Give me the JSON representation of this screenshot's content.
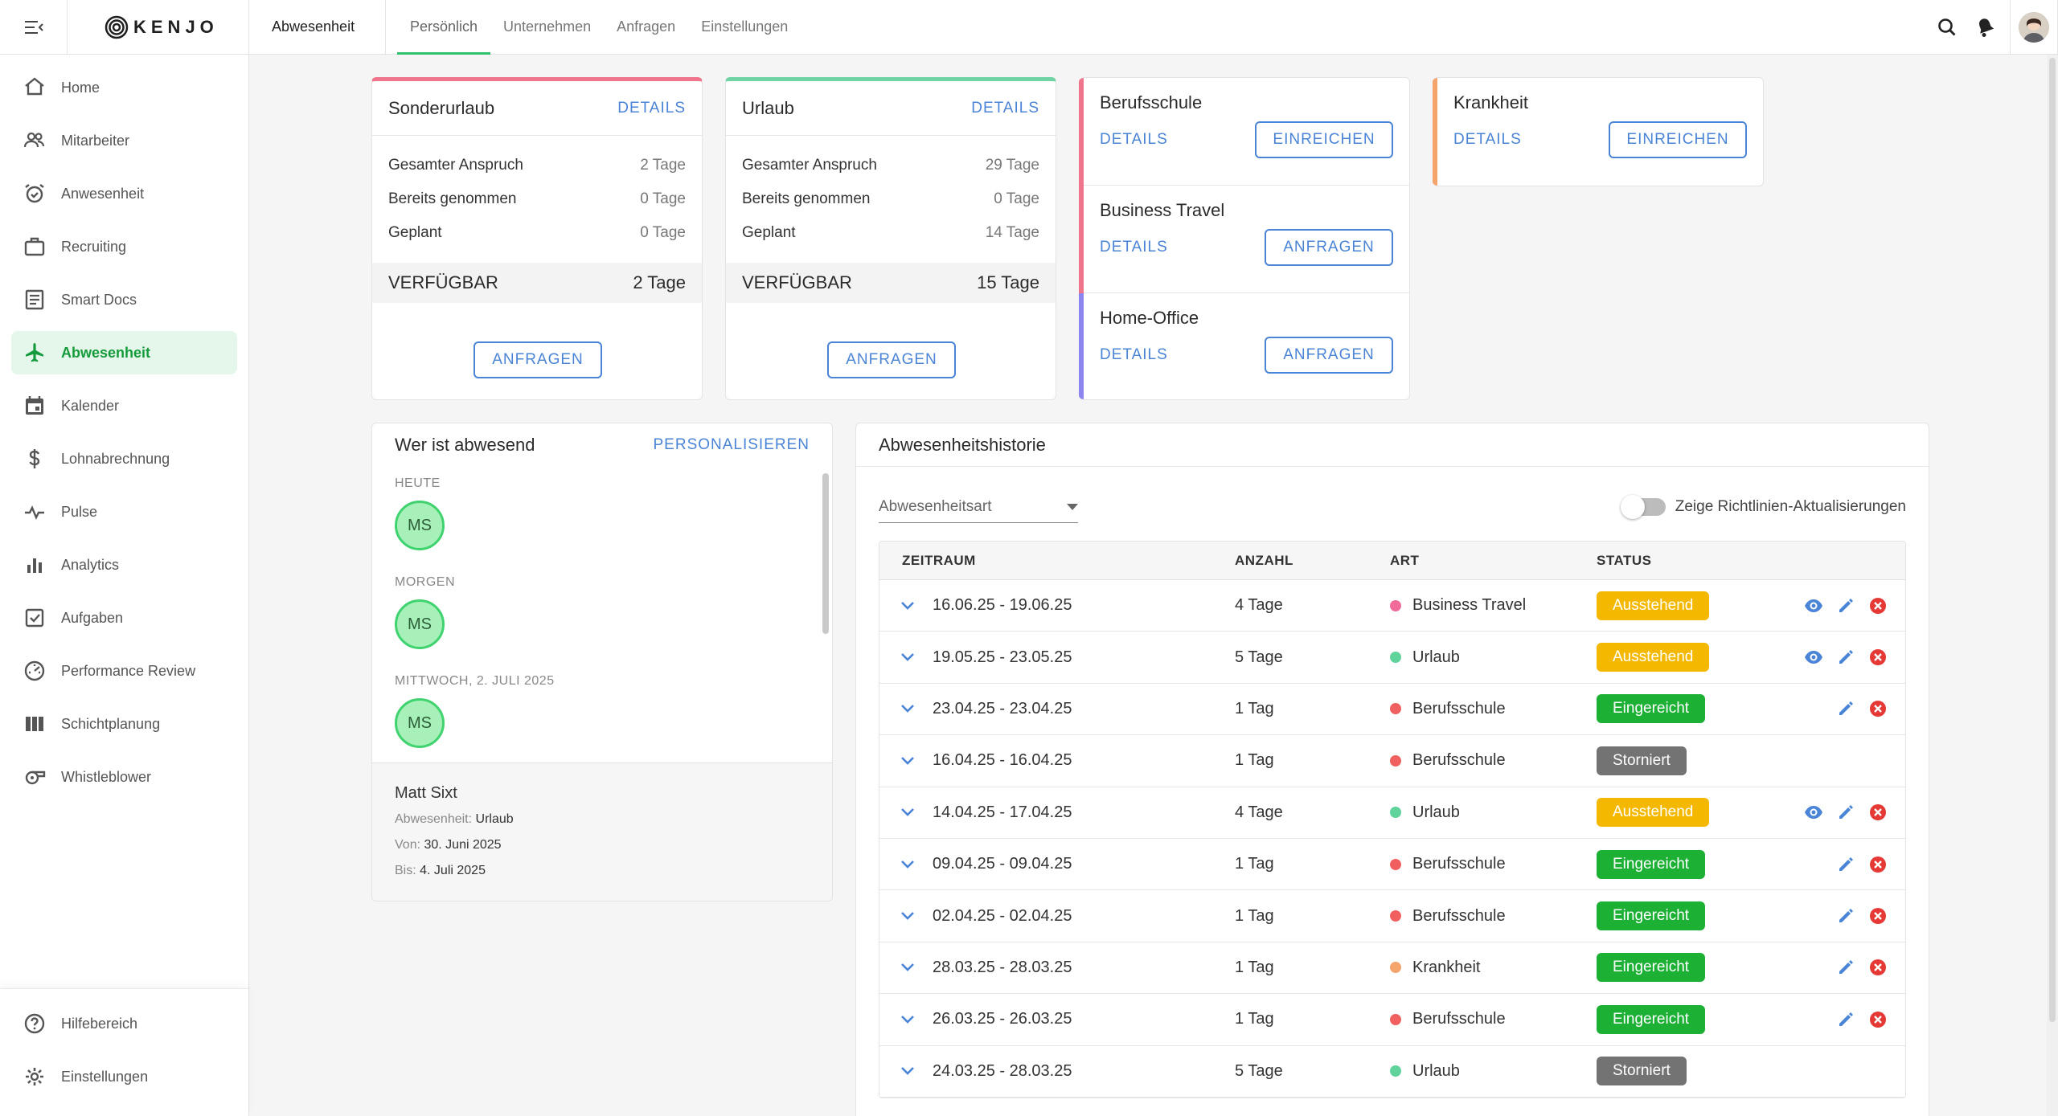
{
  "brand": {
    "name": "KENJO"
  },
  "sidebar": {
    "items": [
      {
        "label": "Home",
        "icon": "home-icon"
      },
      {
        "label": "Mitarbeiter",
        "icon": "people-icon"
      },
      {
        "label": "Anwesenheit",
        "icon": "alarm-clock-icon"
      },
      {
        "label": "Recruiting",
        "icon": "briefcase-icon"
      },
      {
        "label": "Smart Docs",
        "icon": "document-icon"
      },
      {
        "label": "Abwesenheit",
        "icon": "airplane-icon",
        "active": true
      },
      {
        "label": "Kalender",
        "icon": "calendar-icon"
      },
      {
        "label": "Lohnabrechnung",
        "icon": "dollar-icon"
      },
      {
        "label": "Pulse",
        "icon": "pulse-icon"
      },
      {
        "label": "Analytics",
        "icon": "bar-chart-icon"
      },
      {
        "label": "Aufgaben",
        "icon": "checkbox-icon"
      },
      {
        "label": "Performance Review",
        "icon": "gauge-icon"
      },
      {
        "label": "Schichtplanung",
        "icon": "columns-icon"
      },
      {
        "label": "Whistleblower",
        "icon": "whistle-icon"
      }
    ],
    "bottom": [
      {
        "label": "Hilfebereich",
        "icon": "help-icon"
      },
      {
        "label": "Einstellungen",
        "icon": "gear-icon"
      }
    ]
  },
  "header": {
    "section": "Abwesenheit",
    "tabs": [
      "Persönlich",
      "Unternehmen",
      "Anfragen",
      "Einstellungen"
    ],
    "active_tab": 0
  },
  "quota_cards": [
    {
      "title": "Sonderurlaub",
      "details": "DETAILS",
      "color": "#f0758c",
      "rows": [
        {
          "label": "Gesamter Anspruch",
          "value": "2 Tage"
        },
        {
          "label": "Bereits genommen",
          "value": "0 Tage"
        },
        {
          "label": "Geplant",
          "value": "0 Tage"
        }
      ],
      "available_label": "VERFÜGBAR",
      "available_value": "2 Tage",
      "button": "ANFRAGEN"
    },
    {
      "title": "Urlaub",
      "details": "DETAILS",
      "color": "#6fd3a3",
      "rows": [
        {
          "label": "Gesamter Anspruch",
          "value": "29 Tage"
        },
        {
          "label": "Bereits genommen",
          "value": "0 Tage"
        },
        {
          "label": "Geplant",
          "value": "14 Tage"
        }
      ],
      "available_label": "VERFÜGBAR",
      "available_value": "15 Tage",
      "button": "ANFRAGEN"
    }
  ],
  "multi_card": [
    {
      "title": "Berufsschule",
      "details": "DETAILS",
      "button": "EINREICHEN",
      "color": "#f0758c"
    },
    {
      "title": "Business Travel",
      "details": "DETAILS",
      "button": "ANFRAGEN",
      "color": "#f0758c"
    },
    {
      "title": "Home-Office",
      "details": "DETAILS",
      "button": "ANFRAGEN",
      "color": "#8c84f0"
    }
  ],
  "sick_card": {
    "title": "Krankheit",
    "details": "DETAILS",
    "button": "EINREICHEN",
    "color": "#f5a46c"
  },
  "who": {
    "title": "Wer ist abwesend",
    "action": "PERSONALISIEREN",
    "days": [
      {
        "label": "HEUTE",
        "initials": "MS"
      },
      {
        "label": "MORGEN",
        "initials": "MS"
      },
      {
        "label": "MITTWOCH, 2. JULI 2025",
        "initials": "MS"
      }
    ],
    "detail": {
      "name": "Matt Sixt",
      "type_label": "Abwesenheit:",
      "type_value": "Urlaub",
      "from_label": "Von:",
      "from_value": "30. Juni 2025",
      "to_label": "Bis:",
      "to_value": "4. Juli 2025"
    }
  },
  "history": {
    "title": "Abwesenheitshistorie",
    "filter_placeholder": "Abwesenheitsart",
    "toggle_label": "Zeige Richtlinien-Aktualisierungen",
    "columns": [
      "ZEITRAUM",
      "ANZAHL",
      "ART",
      "STATUS"
    ],
    "rows": [
      {
        "period": "16.06.25 - 19.06.25",
        "count": "4 Tage",
        "type": "Business Travel",
        "dot": "#f06a9a",
        "status": "Ausstehend",
        "status_color": "#f5b800",
        "view": true,
        "edit": true,
        "cancel": true
      },
      {
        "period": "19.05.25 - 23.05.25",
        "count": "5 Tage",
        "type": "Urlaub",
        "dot": "#5fd39a",
        "status": "Ausstehend",
        "status_color": "#f5b800",
        "view": true,
        "edit": true,
        "cancel": true
      },
      {
        "period": "23.04.25 - 23.04.25",
        "count": "1 Tag",
        "type": "Berufsschule",
        "dot": "#f0605f",
        "status": "Eingereicht",
        "status_color": "#1cb035",
        "view": false,
        "edit": true,
        "cancel": true
      },
      {
        "period": "16.04.25 - 16.04.25",
        "count": "1 Tag",
        "type": "Berufsschule",
        "dot": "#f0605f",
        "status": "Storniert",
        "status_color": "#737373",
        "view": false,
        "edit": false,
        "cancel": false
      },
      {
        "period": "14.04.25 - 17.04.25",
        "count": "4 Tage",
        "type": "Urlaub",
        "dot": "#5fd39a",
        "status": "Ausstehend",
        "status_color": "#f5b800",
        "view": true,
        "edit": true,
        "cancel": true
      },
      {
        "period": "09.04.25 - 09.04.25",
        "count": "1 Tag",
        "type": "Berufsschule",
        "dot": "#f0605f",
        "status": "Eingereicht",
        "status_color": "#1cb035",
        "view": false,
        "edit": true,
        "cancel": true
      },
      {
        "period": "02.04.25 - 02.04.25",
        "count": "1 Tag",
        "type": "Berufsschule",
        "dot": "#f0605f",
        "status": "Eingereicht",
        "status_color": "#1cb035",
        "view": false,
        "edit": true,
        "cancel": true
      },
      {
        "period": "28.03.25 - 28.03.25",
        "count": "1 Tag",
        "type": "Krankheit",
        "dot": "#f5a46c",
        "status": "Eingereicht",
        "status_color": "#1cb035",
        "view": false,
        "edit": true,
        "cancel": true
      },
      {
        "period": "26.03.25 - 26.03.25",
        "count": "1 Tag",
        "type": "Berufsschule",
        "dot": "#f0605f",
        "status": "Eingereicht",
        "status_color": "#1cb035",
        "view": false,
        "edit": true,
        "cancel": true
      },
      {
        "period": "24.03.25 - 28.03.25",
        "count": "5 Tage",
        "type": "Urlaub",
        "dot": "#5fd39a",
        "status": "Storniert",
        "status_color": "#737373",
        "view": false,
        "edit": false,
        "cancel": false
      }
    ]
  },
  "colors": {
    "accent": "#4a84d6",
    "active_green": "#159b3c",
    "tab_underline": "#2ec26c"
  }
}
